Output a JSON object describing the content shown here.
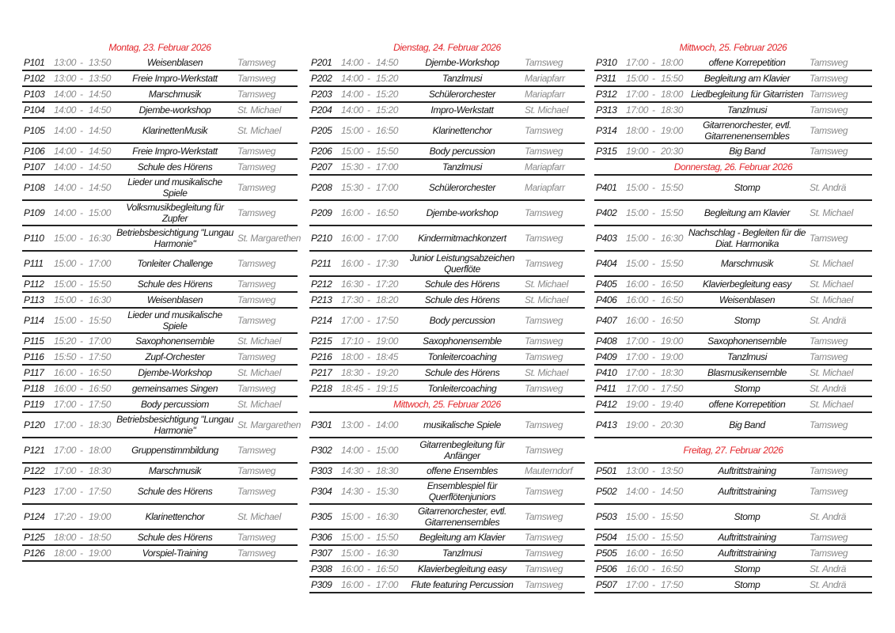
{
  "time_separator": "-",
  "columns": [
    {
      "items": [
        {
          "type": "header",
          "label": "Montag, 23. Februar 2026"
        },
        {
          "type": "row",
          "code": "P101",
          "start": "13:00",
          "end": "13:50",
          "title": "Weisenblasen",
          "location": "Tamsweg"
        },
        {
          "type": "row",
          "code": "P102",
          "start": "13:00",
          "end": "13:50",
          "title": "Freie Impro-Werkstatt",
          "location": "Tamsweg"
        },
        {
          "type": "row",
          "code": "P103",
          "start": "14:00",
          "end": "14:50",
          "title": "Marschmusik",
          "location": "Tamsweg"
        },
        {
          "type": "row",
          "code": "P104",
          "start": "14:00",
          "end": "14:50",
          "title": "Djembe-workshop",
          "location": "St. Michael"
        },
        {
          "type": "row",
          "code": "P105",
          "start": "14:00",
          "end": "14:50",
          "title": "KlarinettenMusik",
          "location": "St. Michael"
        },
        {
          "type": "row",
          "code": "P106",
          "start": "14:00",
          "end": "14:50",
          "title": "Freie Impro-Werkstatt",
          "location": "Tamsweg"
        },
        {
          "type": "row",
          "code": "P107",
          "start": "14:00",
          "end": "14:50",
          "title": "Schule des Hörens",
          "location": "Tamsweg"
        },
        {
          "type": "row",
          "code": "P108",
          "start": "14:00",
          "end": "14:50",
          "title": "Lieder und musikalische Spiele",
          "location": "Tamsweg"
        },
        {
          "type": "row",
          "code": "P109",
          "start": "14:00",
          "end": "15:00",
          "title": "Volksmusikbegleitung für Zupfer",
          "location": "Tamsweg"
        },
        {
          "type": "row",
          "code": "P110",
          "start": "15:00",
          "end": "16:30",
          "title": "Betriebsbesichtigung  \"Lungau Harmonie\"",
          "location": "St. Margarethen"
        },
        {
          "type": "row",
          "code": "P111",
          "start": "15:00",
          "end": "17:00",
          "title": "Tonleiter Challenge",
          "location": "Tamsweg"
        },
        {
          "type": "row",
          "code": "P112",
          "start": "15:00",
          "end": "15:50",
          "title": "Schule des Hörens",
          "location": "Tamsweg"
        },
        {
          "type": "row",
          "code": "P113",
          "start": "15:00",
          "end": "16:30",
          "title": "Weisenblasen",
          "location": "Tamsweg"
        },
        {
          "type": "row",
          "code": "P114",
          "start": "15:00",
          "end": "15:50",
          "title": "Lieder und musikalische Spiele",
          "location": "Tamsweg"
        },
        {
          "type": "row",
          "code": "P115",
          "start": "15:20",
          "end": "17:00",
          "title": "Saxophonensemble",
          "location": "St. Michael"
        },
        {
          "type": "row",
          "code": "P116",
          "start": "15:50",
          "end": "17:50",
          "title": "Zupf-Orchester",
          "location": "Tamsweg"
        },
        {
          "type": "row",
          "code": "P117",
          "start": "16:00",
          "end": "16:50",
          "title": "Djembe-Workshop",
          "location": "St. Michael"
        },
        {
          "type": "row",
          "code": "P118",
          "start": "16:00",
          "end": "16:50",
          "title": "gemeinsames Singen",
          "location": "Tamsweg"
        },
        {
          "type": "row",
          "code": "P119",
          "start": "17:00",
          "end": "17:50",
          "title": "Body percussiom",
          "location": "St. Michael"
        },
        {
          "type": "row",
          "code": "P120",
          "start": "17:00",
          "end": "18:30",
          "title": "Betriebsbesichtigung  \"Lungau Harmonie\"",
          "location": "St. Margarethen"
        },
        {
          "type": "row",
          "code": "P121",
          "start": "17:00",
          "end": "18:00",
          "title": "Gruppenstimmbildung",
          "location": "Tamsweg"
        },
        {
          "type": "row",
          "code": "P122",
          "start": "17:00",
          "end": "18:30",
          "title": "Marschmusik",
          "location": "Tamsweg"
        },
        {
          "type": "row",
          "code": "P123",
          "start": "17:00",
          "end": "17:50",
          "title": "Schule des Hörens",
          "location": "Tamsweg"
        },
        {
          "type": "row",
          "code": "P124",
          "start": "17:20",
          "end": "19:00",
          "title": "Klarinettenchor",
          "location": "St. Michael"
        },
        {
          "type": "row",
          "code": "P125",
          "start": "18:00",
          "end": "18:50",
          "title": "Schule des Hörens",
          "location": "Tamsweg"
        },
        {
          "type": "row",
          "code": "P126",
          "start": "18:00",
          "end": "19:00",
          "title": "Vorspiel-Training",
          "location": "Tamsweg"
        }
      ]
    },
    {
      "items": [
        {
          "type": "header",
          "label": "Dienstag, 24. Februar 2026"
        },
        {
          "type": "row",
          "code": "P201",
          "start": "14:00",
          "end": "14:50",
          "title": "Djembe-Workshop",
          "location": "Tamsweg"
        },
        {
          "type": "row",
          "code": "P202",
          "start": "14:00",
          "end": "15:20",
          "title": "Tanzlmusi",
          "location": "Mariapfarr"
        },
        {
          "type": "row",
          "code": "P203",
          "start": "14:00",
          "end": "15:20",
          "title": "Schülerorchester",
          "location": "Mariapfarr"
        },
        {
          "type": "row",
          "code": "P204",
          "start": "14:00",
          "end": "15:20",
          "title": "Impro-Werkstatt",
          "location": "St. Michael"
        },
        {
          "type": "row",
          "code": "P205",
          "start": "15:00",
          "end": "16:50",
          "title": "Klarinettenchor",
          "location": "Tamsweg"
        },
        {
          "type": "row",
          "code": "P206",
          "start": "15:00",
          "end": "15:50",
          "title": "Body percussion",
          "location": "Tamsweg"
        },
        {
          "type": "row",
          "code": "P207",
          "start": "15:30",
          "end": "17:00",
          "title": "Tanzlmusi",
          "location": "Mariapfarr"
        },
        {
          "type": "row",
          "code": "P208",
          "start": "15:30",
          "end": "17:00",
          "title": "Schülerorchester",
          "location": "Mariapfarr"
        },
        {
          "type": "row",
          "code": "P209",
          "start": "16:00",
          "end": "16:50",
          "title": "Djembe-workshop",
          "location": "Tamsweg"
        },
        {
          "type": "row",
          "code": "P210",
          "start": "16:00",
          "end": "17:00",
          "title": "Kindermitmachkonzert",
          "location": "Tamsweg"
        },
        {
          "type": "row",
          "code": "P211",
          "start": "16:00",
          "end": "17:30",
          "title": "Junior Leistungsabzeichen Querflöte",
          "location": "Tamsweg"
        },
        {
          "type": "row",
          "code": "P212",
          "start": "16:30",
          "end": "17:20",
          "title": "Schule des Hörens",
          "location": "St. Michael"
        },
        {
          "type": "row",
          "code": "P213",
          "start": "17:30",
          "end": "18:20",
          "title": "Schule des Hörens",
          "location": "St. Michael"
        },
        {
          "type": "row",
          "code": "P214",
          "start": "17:00",
          "end": "17:50",
          "title": "Body percussion",
          "location": "Tamsweg"
        },
        {
          "type": "row",
          "code": "P215",
          "start": "17:10",
          "end": "19:00",
          "title": "Saxophonensemble",
          "location": "Tamsweg"
        },
        {
          "type": "row",
          "code": "P216",
          "start": "18:00",
          "end": "18:45",
          "title": "Tonleitercoaching",
          "location": "Tamsweg"
        },
        {
          "type": "row",
          "code": "P217",
          "start": "18:30",
          "end": "19:20",
          "title": "Schule des Hörens",
          "location": "St. Michael"
        },
        {
          "type": "row",
          "code": "P218",
          "start": "18:45",
          "end": "19:15",
          "title": "Tonleitercoaching",
          "location": "Tamsweg"
        },
        {
          "type": "header",
          "label": "Mittwoch, 25. Februar 2026"
        },
        {
          "type": "row",
          "code": "P301",
          "start": "13:00",
          "end": "14:00",
          "title": "musikalische Spiele",
          "location": "Tamsweg"
        },
        {
          "type": "row",
          "code": "P302",
          "start": "14:00",
          "end": "15:00",
          "title": "Gitarrenbegleitung für Anfänger",
          "location": "Tamsweg"
        },
        {
          "type": "row",
          "code": "P303",
          "start": "14:30",
          "end": "18:30",
          "title": "offene Ensembles",
          "location": "Mauterndorf"
        },
        {
          "type": "row",
          "code": "P304",
          "start": "14:30",
          "end": "15:30",
          "title": "Ensemblespiel für Querflötenjuniors",
          "location": "Tamsweg"
        },
        {
          "type": "row",
          "code": "P305",
          "start": "15:00",
          "end": "16:30",
          "title": "Gitarrenorchester, evtl. Gitarrenensembles",
          "location": "Tamsweg"
        },
        {
          "type": "row",
          "code": "P306",
          "start": "15:00",
          "end": "15:50",
          "title": "Begleitung am Klavier",
          "location": "Tamsweg"
        },
        {
          "type": "row",
          "code": "P307",
          "start": "15:00",
          "end": "16:30",
          "title": "Tanzlmusi",
          "location": "Tamsweg"
        },
        {
          "type": "row",
          "code": "P308",
          "start": "16:00",
          "end": "16:50",
          "title": "Klavierbegleitung easy",
          "location": "Tamsweg"
        },
        {
          "type": "row",
          "code": "P309",
          "start": "16:00",
          "end": "17:00",
          "title": "Flute featuring Percussion",
          "location": "Tamsweg"
        }
      ]
    },
    {
      "items": [
        {
          "type": "header",
          "label": "Mittwoch, 25. Februar 2026"
        },
        {
          "type": "row",
          "code": "P310",
          "start": "17:00",
          "end": "18:00",
          "title": "offene Korrepetition",
          "location": "Tamsweg"
        },
        {
          "type": "row",
          "code": "P311",
          "start": "15:00",
          "end": "15:50",
          "title": "Begleitung am Klavier",
          "location": "Tamsweg"
        },
        {
          "type": "row",
          "code": "P312",
          "start": "17:00",
          "end": "18:00",
          "title": "Liedbegleitung für Gitarristen",
          "location": "Tamsweg"
        },
        {
          "type": "row",
          "code": "P313",
          "start": "17:00",
          "end": "18:30",
          "title": "Tanzlmusi",
          "location": "Tamsweg"
        },
        {
          "type": "row",
          "code": "P314",
          "start": "18:00",
          "end": "19:00",
          "title": "Gitarrenorchester, evtl. Gitarrenenensembles",
          "location": "Tamsweg"
        },
        {
          "type": "row",
          "code": "P315",
          "start": "19:00",
          "end": "20:30",
          "title": "Big Band",
          "location": "Tamsweg"
        },
        {
          "type": "header",
          "label": "Donnerstag, 26. Februar 2026"
        },
        {
          "type": "row",
          "code": "P401",
          "start": "15:00",
          "end": "15:50",
          "title": "Stomp",
          "location": "St. Andrä"
        },
        {
          "type": "row",
          "code": "P402",
          "start": "15:00",
          "end": "15:50",
          "title": "Begleitung am Klavier",
          "location": "St. Michael"
        },
        {
          "type": "row",
          "code": "P403",
          "start": "15:00",
          "end": "16:30",
          "title": "Nachschlag - Begleiten für die Diat. Harmonika",
          "location": "Tamsweg"
        },
        {
          "type": "row",
          "code": "P404",
          "start": "15:00",
          "end": "15:50",
          "title": "Marschmusik",
          "location": "St. Michael"
        },
        {
          "type": "row",
          "code": "P405",
          "start": "16:00",
          "end": "16:50",
          "title": "Klavierbegleitung easy",
          "location": "St. Michael"
        },
        {
          "type": "row",
          "code": "P406",
          "start": "16:00",
          "end": "16:50",
          "title": "Weisenblasen",
          "location": "St. Michael"
        },
        {
          "type": "row",
          "code": "P407",
          "start": "16:00",
          "end": "16:50",
          "title": "Stomp",
          "location": "St. Andrä"
        },
        {
          "type": "row",
          "code": "P408",
          "start": "17:00",
          "end": "19:00",
          "title": "Saxophonensemble",
          "location": "Tamsweg"
        },
        {
          "type": "row",
          "code": "P409",
          "start": "17:00",
          "end": "19:00",
          "title": "Tanzlmusi",
          "location": "Tamsweg"
        },
        {
          "type": "row",
          "code": "P410",
          "start": "17:00",
          "end": "18:30",
          "title": "Blasmusikensemble",
          "location": "St. Michael"
        },
        {
          "type": "row",
          "code": "P411",
          "start": "17:00",
          "end": "17:50",
          "title": "Stomp",
          "location": "St. Andrä"
        },
        {
          "type": "row",
          "code": "P412",
          "start": "19:00",
          "end": "19:40",
          "title": "offene Korrepetition",
          "location": "St. Michael"
        },
        {
          "type": "row",
          "code": "P413",
          "start": "19:00",
          "end": "20:30",
          "title": "Big Band",
          "location": "Tamsweg"
        },
        {
          "type": "header",
          "label": "Freitag, 27. Februar 2026"
        },
        {
          "type": "row",
          "code": "P501",
          "start": "13:00",
          "end": "13:50",
          "title": "Auftrittstraining",
          "location": "Tamsweg"
        },
        {
          "type": "row",
          "code": "P502",
          "start": "14:00",
          "end": "14:50",
          "title": "Auftrittstraining",
          "location": "Tamsweg"
        },
        {
          "type": "row",
          "code": "P503",
          "start": "15:00",
          "end": "15:50",
          "title": "Stomp",
          "location": "St. Andrä"
        },
        {
          "type": "row",
          "code": "P504",
          "start": "15:00",
          "end": "15:50",
          "title": "Auftrittstraining",
          "location": "Tamsweg"
        },
        {
          "type": "row",
          "code": "P505",
          "start": "16:00",
          "end": "16:50",
          "title": "Auftrittstraining",
          "location": "Tamsweg"
        },
        {
          "type": "row",
          "code": "P506",
          "start": "16:00",
          "end": "16:50",
          "title": "Stomp",
          "location": "St. Andrä"
        },
        {
          "type": "row",
          "code": "P507",
          "start": "17:00",
          "end": "17:50",
          "title": "Stomp",
          "location": "St. Andrä"
        }
      ]
    }
  ]
}
